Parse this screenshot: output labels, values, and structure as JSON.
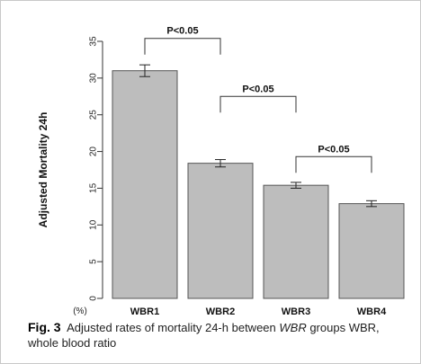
{
  "chart_data": {
    "type": "bar",
    "ylabel": "Adjusted Mortality 24h",
    "yunit": "(%)",
    "ylim": [
      0,
      35
    ],
    "yticks": [
      0,
      5,
      10,
      15,
      20,
      25,
      30,
      35
    ],
    "categories": [
      "WBR1",
      "WBR2",
      "WBR3",
      "WBR4"
    ],
    "values": [
      31.0,
      18.4,
      15.4,
      12.9
    ],
    "error_bars": [
      0.8,
      0.5,
      0.4,
      0.4
    ],
    "bar_color": "#bdbdbd",
    "comparisons": [
      {
        "from": 0,
        "to": 1,
        "label": "P<0.05",
        "y": 35.4
      },
      {
        "from": 1,
        "to": 2,
        "label": "P<0.05",
        "y": 27.5
      },
      {
        "from": 2,
        "to": 3,
        "label": "P<0.05",
        "y": 19.3
      }
    ]
  },
  "caption": {
    "label": "Fig. 3",
    "text_before": "Adjusted rates of mortality 24-h between ",
    "emph": "WBR",
    "text_after": " groups WBR, whole blood ratio"
  }
}
